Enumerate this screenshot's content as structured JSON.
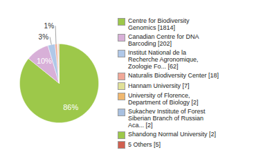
{
  "chart_data": {
    "type": "pie",
    "categories": [
      "Centre for Biodiversity\nGenomics [1814]",
      "Canadian Centre for DNA\nBarcoding [202]",
      "Institut National de la\nRecherche Agronomique,\nZoologie Fo... [62]",
      "Naturalis Biodiversity Center [18]",
      "Hannam University [7]",
      "University of Florence,\nDepartment of Biology [2]",
      "Sukachev Institute of Forest\nSiberian Branch of Russian\nAca... [2]",
      "Shandong Normal University [2]",
      "5 Others [5]"
    ],
    "values": [
      85.81,
      9.56,
      2.93,
      0.85,
      0.33,
      0.09,
      0.09,
      0.09,
      0.24
    ],
    "value_labels": [
      "86%",
      "10%",
      "3%",
      "1%",
      null,
      null,
      null,
      null,
      null
    ],
    "colors": [
      "#9dc84a",
      "#d8b0d8",
      "#b0c8e8",
      "#f0a898",
      "#e0e098",
      "#f0b870",
      "#a8c0e0",
      "#9dc84a",
      "#d06050"
    ],
    "data_labels": true,
    "legend": "right"
  }
}
